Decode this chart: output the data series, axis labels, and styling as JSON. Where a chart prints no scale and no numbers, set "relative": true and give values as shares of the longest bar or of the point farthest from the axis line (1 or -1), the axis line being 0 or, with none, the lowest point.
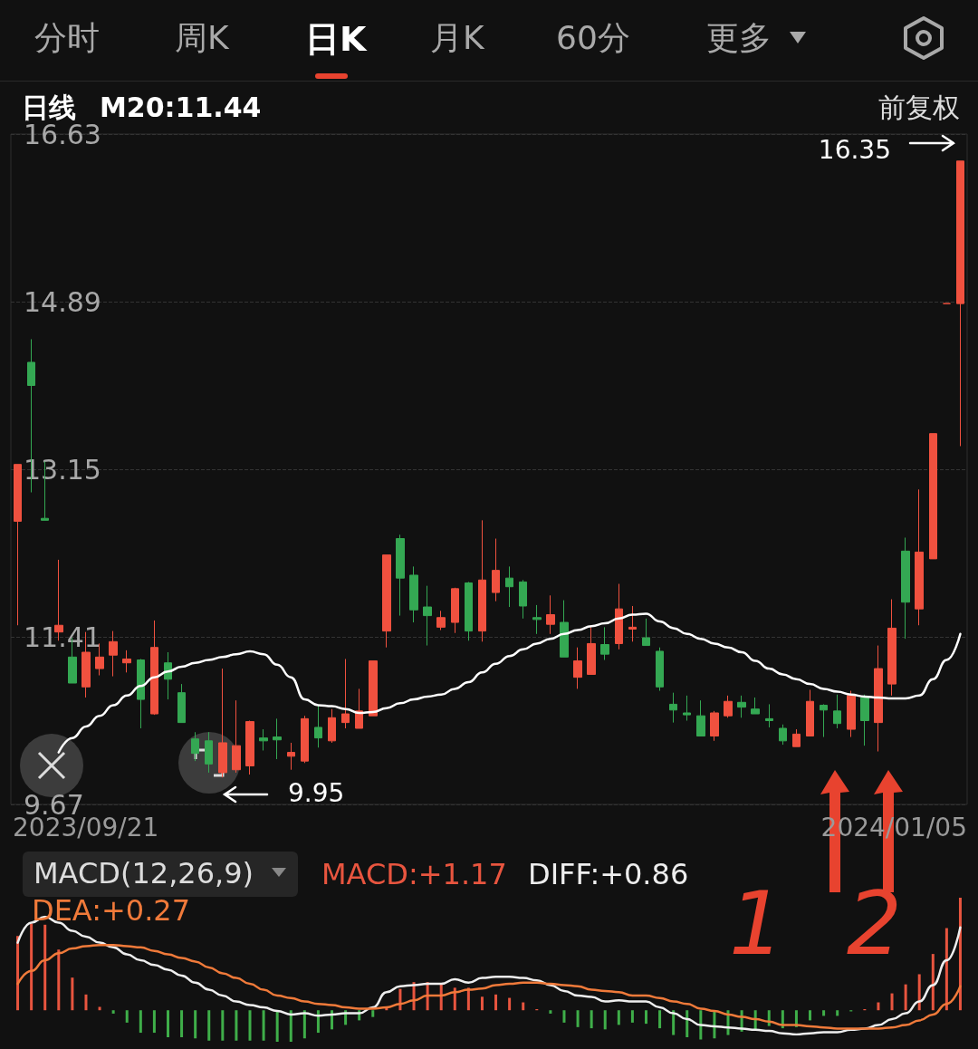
{
  "chart_data": [
    {
      "type": "candlestick",
      "categories": [
        null,
        null,
        null,
        null,
        null,
        null,
        null,
        null,
        null,
        null,
        null,
        null,
        null,
        null,
        null,
        null,
        null,
        null,
        null,
        null,
        null,
        null,
        null,
        null,
        null,
        null,
        null,
        null,
        null,
        null,
        null,
        null,
        null,
        null,
        null,
        null,
        null,
        null,
        null,
        null,
        null,
        null,
        null,
        null,
        null,
        null,
        null,
        null,
        null,
        null,
        null,
        null,
        null,
        null,
        null,
        null,
        null,
        null,
        null,
        null,
        null,
        null,
        null,
        null,
        null,
        null,
        null,
        null,
        null,
        null
      ],
      "ohlc": [
        [
          12.61,
          13.2,
          11.53,
          13.2
        ],
        [
          14.26,
          14.5,
          12.91,
          14.02
        ],
        [
          12.64,
          13.23,
          12.62,
          12.62
        ],
        [
          11.46,
          12.21,
          11.37,
          11.53
        ],
        [
          11.2,
          11.4,
          10.93,
          10.93
        ],
        [
          10.89,
          11.46,
          10.78,
          11.25
        ],
        [
          11.08,
          11.34,
          11.01,
          11.2
        ],
        [
          11.22,
          11.47,
          11.0,
          11.36
        ],
        [
          11.14,
          11.27,
          11.04,
          11.18
        ],
        [
          11.17,
          11.18,
          10.46,
          10.76
        ],
        [
          10.61,
          11.58,
          10.6,
          11.3
        ],
        [
          11.14,
          11.25,
          10.76,
          10.97
        ],
        [
          10.83,
          10.92,
          10.52,
          10.52
        ],
        [
          10.35,
          10.42,
          10.12,
          10.2
        ],
        [
          10.33,
          10.42,
          10.0,
          10.09
        ],
        [
          10.0,
          11.08,
          9.95,
          10.31
        ],
        [
          10.03,
          10.75,
          10.0,
          10.28
        ],
        [
          10.07,
          10.54,
          9.98,
          10.53
        ],
        [
          10.36,
          10.45,
          10.23,
          10.33
        ],
        [
          10.37,
          10.56,
          10.14,
          10.34
        ],
        [
          10.17,
          10.31,
          10.03,
          10.21
        ],
        [
          10.12,
          10.59,
          10.1,
          10.56
        ],
        [
          10.47,
          10.7,
          10.26,
          10.36
        ],
        [
          10.33,
          10.66,
          10.31,
          10.57
        ],
        [
          10.52,
          11.18,
          10.46,
          10.61
        ],
        [
          10.46,
          10.87,
          10.46,
          10.64
        ],
        [
          10.59,
          11.16,
          10.59,
          11.16
        ],
        [
          11.47,
          12.26,
          11.3,
          12.26
        ],
        [
          12.43,
          12.47,
          11.63,
          12.02
        ],
        [
          12.05,
          12.14,
          11.56,
          11.69
        ],
        [
          11.72,
          11.94,
          11.32,
          11.63
        ],
        [
          11.51,
          11.68,
          11.48,
          11.61
        ],
        [
          11.56,
          11.92,
          11.45,
          11.91
        ],
        [
          11.97,
          11.98,
          11.37,
          11.47
        ],
        [
          11.47,
          12.62,
          11.36,
          12.0
        ],
        [
          11.87,
          12.43,
          11.78,
          12.1
        ],
        [
          12.02,
          12.14,
          11.72,
          11.93
        ],
        [
          11.98,
          12.0,
          11.6,
          11.73
        ],
        [
          11.61,
          11.74,
          11.44,
          11.59
        ],
        [
          11.54,
          11.84,
          11.44,
          11.64
        ],
        [
          11.56,
          11.79,
          11.2,
          11.2
        ],
        [
          10.99,
          11.3,
          10.87,
          11.16
        ],
        [
          11.02,
          11.51,
          11.02,
          11.34
        ],
        [
          11.33,
          11.51,
          11.17,
          11.23
        ],
        [
          11.34,
          11.96,
          11.28,
          11.7
        ],
        [
          11.49,
          11.73,
          11.36,
          11.51
        ],
        [
          11.4,
          11.6,
          11.32,
          11.32
        ],
        [
          11.26,
          11.3,
          10.85,
          10.89
        ],
        [
          10.71,
          10.83,
          10.52,
          10.65
        ],
        [
          10.62,
          10.8,
          10.54,
          10.6
        ],
        [
          10.59,
          10.75,
          10.38,
          10.38
        ],
        [
          10.38,
          10.64,
          10.33,
          10.62
        ],
        [
          10.59,
          10.8,
          10.57,
          10.74
        ],
        [
          10.73,
          10.8,
          10.57,
          10.68
        ],
        [
          10.66,
          10.78,
          10.61,
          10.61
        ],
        [
          10.56,
          10.71,
          10.47,
          10.54
        ],
        [
          10.46,
          10.5,
          10.29,
          10.33
        ],
        [
          10.27,
          10.45,
          10.27,
          10.4
        ],
        [
          10.38,
          10.86,
          10.38,
          10.74
        ],
        [
          10.7,
          10.71,
          10.37,
          10.65
        ],
        [
          10.64,
          10.81,
          10.46,
          10.51
        ],
        [
          10.45,
          10.85,
          10.37,
          10.8
        ],
        [
          10.78,
          10.81,
          10.28,
          10.54
        ],
        [
          10.52,
          11.32,
          10.22,
          11.08
        ],
        [
          10.92,
          11.8,
          10.8,
          11.5
        ],
        [
          12.3,
          12.44,
          11.39,
          11.77
        ],
        [
          11.7,
          12.94,
          11.53,
          12.29
        ],
        [
          12.22,
          13.52,
          12.22,
          13.52
        ],
        [
          14.87,
          14.87,
          14.87,
          14.87
        ],
        [
          14.87,
          16.35,
          13.39,
          16.35
        ]
      ],
      "colors": [
        "#f0513f",
        "#34a853",
        "#34a853",
        "#f0513f",
        "#34a853",
        "#f0513f",
        "#f0513f",
        "#f0513f",
        "#f0513f",
        "#34a853",
        "#f0513f",
        "#34a853",
        "#34a853",
        "#34a853",
        "#34a853",
        "#f0513f",
        "#f0513f",
        "#f0513f",
        "#34a853",
        "#34a853",
        "#f0513f",
        "#f0513f",
        "#34a853",
        "#f0513f",
        "#f0513f",
        "#f0513f",
        "#f0513f",
        "#f0513f",
        "#34a853",
        "#34a853",
        "#34a853",
        "#f0513f",
        "#f0513f",
        "#34a853",
        "#f0513f",
        "#f0513f",
        "#34a853",
        "#34a853",
        "#34a853",
        "#f0513f",
        "#34a853",
        "#f0513f",
        "#f0513f",
        "#34a853",
        "#f0513f",
        "#f0513f",
        "#34a853",
        "#34a853",
        "#34a853",
        "#34a853",
        "#34a853",
        "#f0513f",
        "#f0513f",
        "#34a853",
        "#34a853",
        "#34a853",
        "#34a853",
        "#f0513f",
        "#f0513f",
        "#34a853",
        "#34a853",
        "#f0513f",
        "#34a853",
        "#f0513f",
        "#f0513f",
        "#34a853",
        "#f0513f",
        "#f0513f",
        "#f0513f",
        "#f0513f"
      ],
      "series": [
        {
          "type": "line",
          "color": "#ffffff",
          "values": [
            null,
            null,
            null,
            10.21,
            10.36,
            10.48,
            10.59,
            10.7,
            10.8,
            10.9,
            10.99,
            11.05,
            11.1,
            11.14,
            11.17,
            11.2,
            11.23,
            11.26,
            11.23,
            11.12,
            10.99,
            10.76,
            10.7,
            10.69,
            10.66,
            10.62,
            10.63,
            10.67,
            10.72,
            10.76,
            10.79,
            10.81,
            10.87,
            10.94,
            11.04,
            11.13,
            11.21,
            11.28,
            11.34,
            11.39,
            11.44,
            11.48,
            11.52,
            11.55,
            11.6,
            11.64,
            11.65,
            11.57,
            11.5,
            11.44,
            11.39,
            11.34,
            11.3,
            11.25,
            11.16,
            11.08,
            11.02,
            10.97,
            10.92,
            10.87,
            10.84,
            10.81,
            10.79,
            10.78,
            10.77,
            10.77,
            10.8,
            10.97,
            11.17,
            11.44
          ]
        }
      ],
      "ylim": [
        9.67,
        16.63
      ],
      "yticks": [
        9.67,
        11.41,
        13.15,
        14.89,
        16.63
      ],
      "grid": "y",
      "marker": "none",
      "annotations": [
        "分时",
        "周K",
        "日K",
        "月K",
        "60分",
        "更多",
        "日线",
        "M20:11.44",
        "前复权",
        "16.35",
        "9.95",
        "2023/09/21",
        "2024/01/05"
      ]
    },
    {
      "type": "bar",
      "relative": true,
      "legend": "top",
      "categories": [
        null,
        null,
        null,
        null,
        null,
        null,
        null,
        null,
        null,
        null,
        null,
        null,
        null,
        null,
        null,
        null,
        null,
        null,
        null,
        null,
        null,
        null,
        null,
        null,
        null,
        null,
        null,
        null,
        null,
        null,
        null,
        null,
        null,
        null,
        null,
        null,
        null,
        null,
        null,
        null,
        null,
        null,
        null,
        null,
        null,
        null,
        null,
        null,
        null,
        null,
        null,
        null,
        null,
        null,
        null,
        null,
        null,
        null,
        null,
        null,
        null,
        null,
        null,
        null,
        null,
        null,
        null,
        null,
        null,
        null
      ],
      "series": [
        {
          "name": "MACD:+1.17",
          "type": "bar",
          "color": "#e8553f",
          "colors": [
            "#e8553f",
            "#e8553f",
            "#e8553f",
            "#e8553f",
            "#e8553f",
            "#e8553f",
            "#e8553f",
            "#3fae49",
            "#3fae49",
            "#3fae49",
            "#3fae49",
            "#3fae49",
            "#3fae49",
            "#3fae49",
            "#3fae49",
            "#3fae49",
            "#3fae49",
            "#3fae49",
            "#3fae49",
            "#3fae49",
            "#3fae49",
            "#3fae49",
            "#3fae49",
            "#3fae49",
            "#3fae49",
            "#3fae49",
            "#3fae49",
            "#e8553f",
            "#e8553f",
            "#e8553f",
            "#e8553f",
            "#e8553f",
            "#e8553f",
            "#e8553f",
            "#e8553f",
            "#e8553f",
            "#e8553f",
            "#e8553f",
            "#e8553f",
            "#3fae49",
            "#3fae49",
            "#3fae49",
            "#3fae49",
            "#3fae49",
            "#3fae49",
            "#3fae49",
            "#3fae49",
            "#3fae49",
            "#3fae49",
            "#3fae49",
            "#3fae49",
            "#3fae49",
            "#3fae49",
            "#3fae49",
            "#3fae49",
            "#3fae49",
            "#3fae49",
            "#3fae49",
            "#3fae49",
            "#3fae49",
            "#3fae49",
            "#3fae49",
            "#e8553f",
            "#e8553f",
            "#e8553f",
            "#e8553f",
            "#e8553f",
            "#e8553f",
            "#e8553f",
            "#e8553f"
          ],
          "values": [
            0.66,
            0.77,
            0.76,
            0.54,
            0.29,
            0.14,
            0.03,
            -0.03,
            -0.11,
            -0.2,
            -0.2,
            -0.24,
            -0.24,
            -0.25,
            -0.27,
            -0.27,
            -0.27,
            -0.27,
            -0.27,
            -0.28,
            -0.28,
            -0.25,
            -0.2,
            -0.17,
            -0.13,
            -0.09,
            -0.06,
            0.03,
            0.19,
            0.25,
            0.25,
            0.23,
            0.2,
            0.2,
            0.12,
            0.14,
            0.11,
            0.07,
            0.01,
            -0.03,
            -0.11,
            -0.15,
            -0.16,
            -0.17,
            -0.13,
            -0.11,
            -0.12,
            -0.16,
            -0.22,
            -0.24,
            -0.26,
            -0.25,
            -0.22,
            -0.19,
            -0.17,
            -0.14,
            -0.16,
            -0.15,
            -0.09,
            -0.05,
            -0.05,
            -0.01,
            0.01,
            0.07,
            0.15,
            0.23,
            0.32,
            0.5,
            0.73,
            1.0
          ]
        }
      ],
      "annotations": [
        "MACD(12,26,9)",
        "1",
        "2"
      ]
    },
    {
      "type": "line",
      "relative": true,
      "legend": "top",
      "marker": "none",
      "categories": [
        null,
        null,
        null,
        null,
        null,
        null,
        null,
        null,
        null,
        null,
        null,
        null,
        null,
        null,
        null,
        null,
        null,
        null,
        null,
        null,
        null,
        null,
        null,
        null,
        null,
        null,
        null,
        null,
        null,
        null,
        null,
        null,
        null,
        null,
        null,
        null,
        null,
        null,
        null,
        null,
        null,
        null,
        null,
        null,
        null,
        null,
        null,
        null,
        null,
        null,
        null,
        null,
        null,
        null,
        null,
        null,
        null,
        null,
        null,
        null,
        null,
        null,
        null,
        null,
        null,
        null,
        null,
        null,
        null,
        null
      ],
      "series": [
        {
          "name": "DIFF:+0.86",
          "color": "#eeeeee",
          "values": [
            0.78,
            0.95,
            1.0,
            0.95,
            0.88,
            0.83,
            0.78,
            0.74,
            0.68,
            0.63,
            0.59,
            0.55,
            0.5,
            0.44,
            0.38,
            0.33,
            0.28,
            0.25,
            0.23,
            0.2,
            0.17,
            0.18,
            0.16,
            0.17,
            0.18,
            0.18,
            0.23,
            0.36,
            0.41,
            0.42,
            0.43,
            0.43,
            0.47,
            0.44,
            0.48,
            0.49,
            0.49,
            0.48,
            0.46,
            0.42,
            0.37,
            0.33,
            0.32,
            0.28,
            0.29,
            0.28,
            0.28,
            0.23,
            0.18,
            0.13,
            0.08,
            0.07,
            0.06,
            0.05,
            0.04,
            0.03,
            0.01,
            0.0,
            0.01,
            0.02,
            0.02,
            0.04,
            0.05,
            0.08,
            0.13,
            0.18,
            0.28,
            0.42,
            0.63,
            0.91
          ]
        },
        {
          "name": "DEA:+0.27",
          "color": "#f07a3a",
          "values": [
            0.43,
            0.54,
            0.63,
            0.69,
            0.73,
            0.75,
            0.76,
            0.76,
            0.75,
            0.74,
            0.71,
            0.68,
            0.65,
            0.62,
            0.57,
            0.52,
            0.48,
            0.43,
            0.38,
            0.33,
            0.31,
            0.28,
            0.26,
            0.25,
            0.23,
            0.22,
            0.22,
            0.23,
            0.26,
            0.29,
            0.33,
            0.33,
            0.36,
            0.38,
            0.39,
            0.42,
            0.43,
            0.44,
            0.44,
            0.43,
            0.42,
            0.41,
            0.38,
            0.37,
            0.36,
            0.33,
            0.33,
            0.31,
            0.28,
            0.26,
            0.22,
            0.2,
            0.17,
            0.15,
            0.13,
            0.11,
            0.08,
            0.08,
            0.07,
            0.06,
            0.05,
            0.05,
            0.05,
            0.05,
            0.06,
            0.08,
            0.12,
            0.17,
            0.26,
            0.41
          ]
        }
      ]
    }
  ]
}
